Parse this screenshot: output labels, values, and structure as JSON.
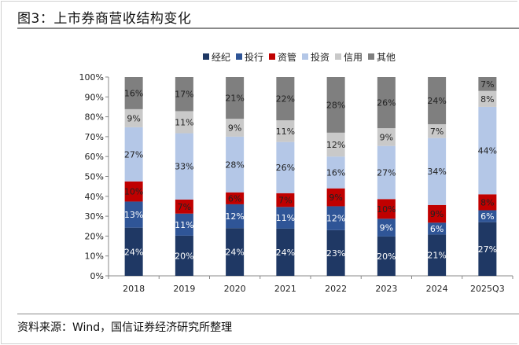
{
  "title": "图3：上市券商营收结构变化",
  "source": "资料来源：Wind，国信证券经济研究所整理",
  "chart_data": {
    "type": "bar",
    "stacked": true,
    "normalized": true,
    "categories": [
      "2018",
      "2019",
      "2020",
      "2021",
      "2022",
      "2023",
      "2024",
      "2025Q3"
    ],
    "series": [
      {
        "name": "经纪",
        "color": "#1f3864",
        "label_color": "#ffffff",
        "values": [
          24,
          20,
          24,
          24,
          23,
          20,
          21,
          27
        ]
      },
      {
        "name": "投行",
        "color": "#2f5597",
        "label_color": "#ffffff",
        "values": [
          13,
          11,
          12,
          11,
          12,
          9,
          6,
          6
        ]
      },
      {
        "name": "资管",
        "color": "#c00000",
        "label_color": "#222222",
        "values": [
          10,
          7,
          6,
          7,
          9,
          10,
          9,
          8
        ]
      },
      {
        "name": "投资",
        "color": "#b4c7e7",
        "label_color": "#222222",
        "values": [
          27,
          33,
          28,
          26,
          16,
          27,
          34,
          44
        ]
      },
      {
        "name": "信用",
        "color": "#c9c9c9",
        "label_color": "#222222",
        "values": [
          9,
          11,
          9,
          11,
          12,
          9,
          7,
          8
        ]
      },
      {
        "name": "其他",
        "color": "#7f7f7f",
        "label_color": "#222222",
        "values": [
          16,
          17,
          21,
          22,
          28,
          26,
          24,
          7
        ]
      }
    ],
    "ylim": [
      0,
      100
    ],
    "yticks": [
      "0%",
      "10%",
      "20%",
      "30%",
      "40%",
      "50%",
      "60%",
      "70%",
      "80%",
      "90%",
      "100%"
    ],
    "value_suffix": "%",
    "legend": "top",
    "grid": false
  }
}
